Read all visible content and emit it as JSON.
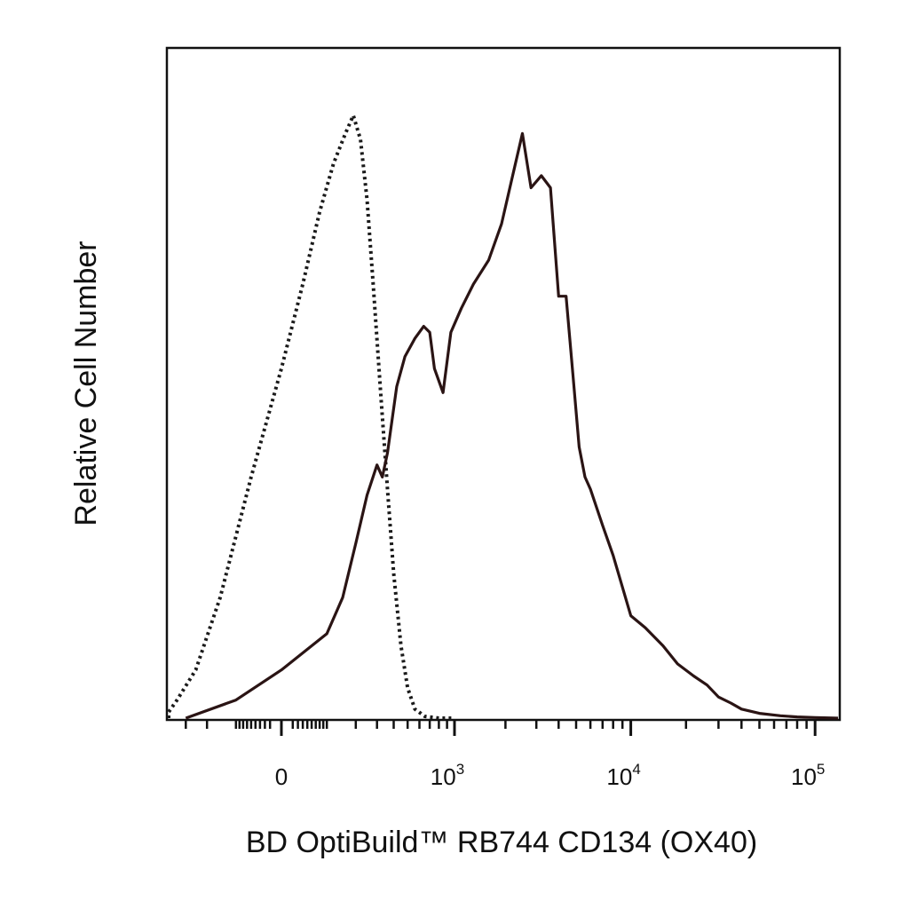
{
  "chart_data": {
    "type": "line",
    "xlabel": "BD OptiBuild™ RB744 CD134 (OX40)",
    "ylabel": "Relative Cell Number",
    "x_scale": "biexponential",
    "x_ticks": [
      {
        "value": 0,
        "base": "0",
        "exp": ""
      },
      {
        "value": 1000,
        "base": "10",
        "exp": "3"
      },
      {
        "value": 10000,
        "base": "10",
        "exp": "4"
      },
      {
        "value": 100000,
        "base": "10",
        "exp": "5"
      }
    ],
    "y_ticks_shown": false,
    "grid": false,
    "legend": "none",
    "series": [
      {
        "style": "dotted",
        "color": "#1a1a1a",
        "x": [
          -600,
          -450,
          -350,
          -250,
          -150,
          -60,
          0,
          40,
          80,
          120,
          160,
          190,
          220,
          250,
          280,
          320,
          360,
          400,
          450,
          500,
          560,
          650,
          800,
          1000
        ],
        "y": [
          0,
          1,
          3,
          8,
          20,
          40,
          58,
          72,
          84,
          92,
          97,
          100,
          96,
          86,
          72,
          54,
          38,
          24,
          12,
          5,
          1.5,
          0.3,
          0,
          0
        ]
      },
      {
        "style": "solid",
        "color": "#2a1414",
        "x": [
          -300,
          -100,
          0,
          100,
          150,
          200,
          250,
          300,
          330,
          360,
          420,
          480,
          560,
          640,
          700,
          750,
          850,
          950,
          1100,
          1300,
          1600,
          1900,
          2200,
          2500,
          2800,
          3200,
          3600,
          4000,
          4400,
          4800,
          5200,
          5600,
          6000,
          7000,
          8000,
          10000,
          12000,
          15000,
          18000,
          22000,
          26000,
          30000,
          35000,
          40000,
          50000,
          65000,
          80000,
          100000,
          150000
        ],
        "y": [
          0,
          3,
          8,
          14,
          20,
          29,
          37,
          42,
          40,
          44,
          55,
          60,
          63,
          65,
          64,
          58,
          54,
          64,
          68,
          72,
          76,
          82,
          90,
          97,
          88,
          90,
          88,
          70,
          70,
          57,
          45,
          40,
          38,
          32,
          27,
          17,
          15,
          12,
          9,
          7,
          5.5,
          3.5,
          2.5,
          1.5,
          0.8,
          0.4,
          0.2,
          0.1,
          0
        ]
      }
    ]
  }
}
